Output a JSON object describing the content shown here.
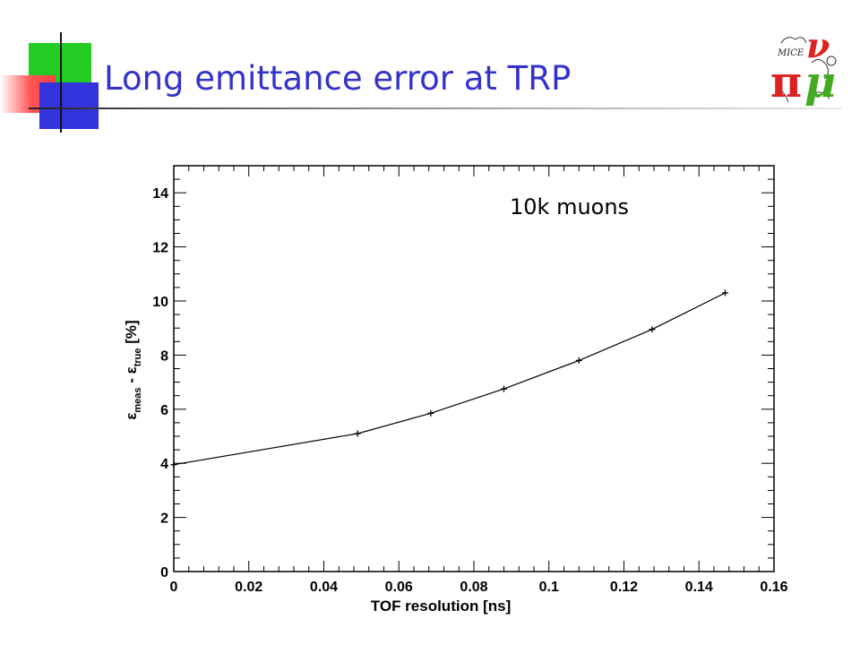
{
  "slide": {
    "title": "Long emittance error at TRP",
    "logo": {
      "name": "MICE logo",
      "text": "MICE",
      "symbols": [
        "π",
        "ν",
        "μ"
      ]
    }
  },
  "colors": {
    "title": "#3333cc",
    "green": "#22cc22",
    "red": "#ff4040",
    "blue": "#3333dd",
    "logo_red": "#dd2222",
    "logo_green": "#44aa22"
  },
  "chart_data": {
    "type": "line",
    "title": "",
    "xlabel": "TOF resolution [ns]",
    "ylabel": {
      "e1": "ε",
      "s1": "meas",
      "mid": " - ",
      "e2": "ε",
      "s2": "true",
      "unit": " [%]"
    },
    "xlim": [
      0,
      0.16
    ],
    "ylim": [
      0,
      15
    ],
    "x_ticks": [
      "0",
      "0.02",
      "0.04",
      "0.06",
      "0.08",
      "0.1",
      "0.12",
      "0.14",
      "0.16"
    ],
    "y_ticks": [
      "0",
      "2",
      "4",
      "6",
      "8",
      "10",
      "12",
      "14"
    ],
    "annotation": "10k muons",
    "grid": false,
    "series": [
      {
        "x": [
          0,
          0.049,
          0.0685,
          0.088,
          0.108,
          0.1275,
          0.147
        ],
        "y": [
          3.95,
          5.1,
          5.85,
          6.75,
          7.8,
          8.95,
          10.3
        ]
      }
    ]
  }
}
